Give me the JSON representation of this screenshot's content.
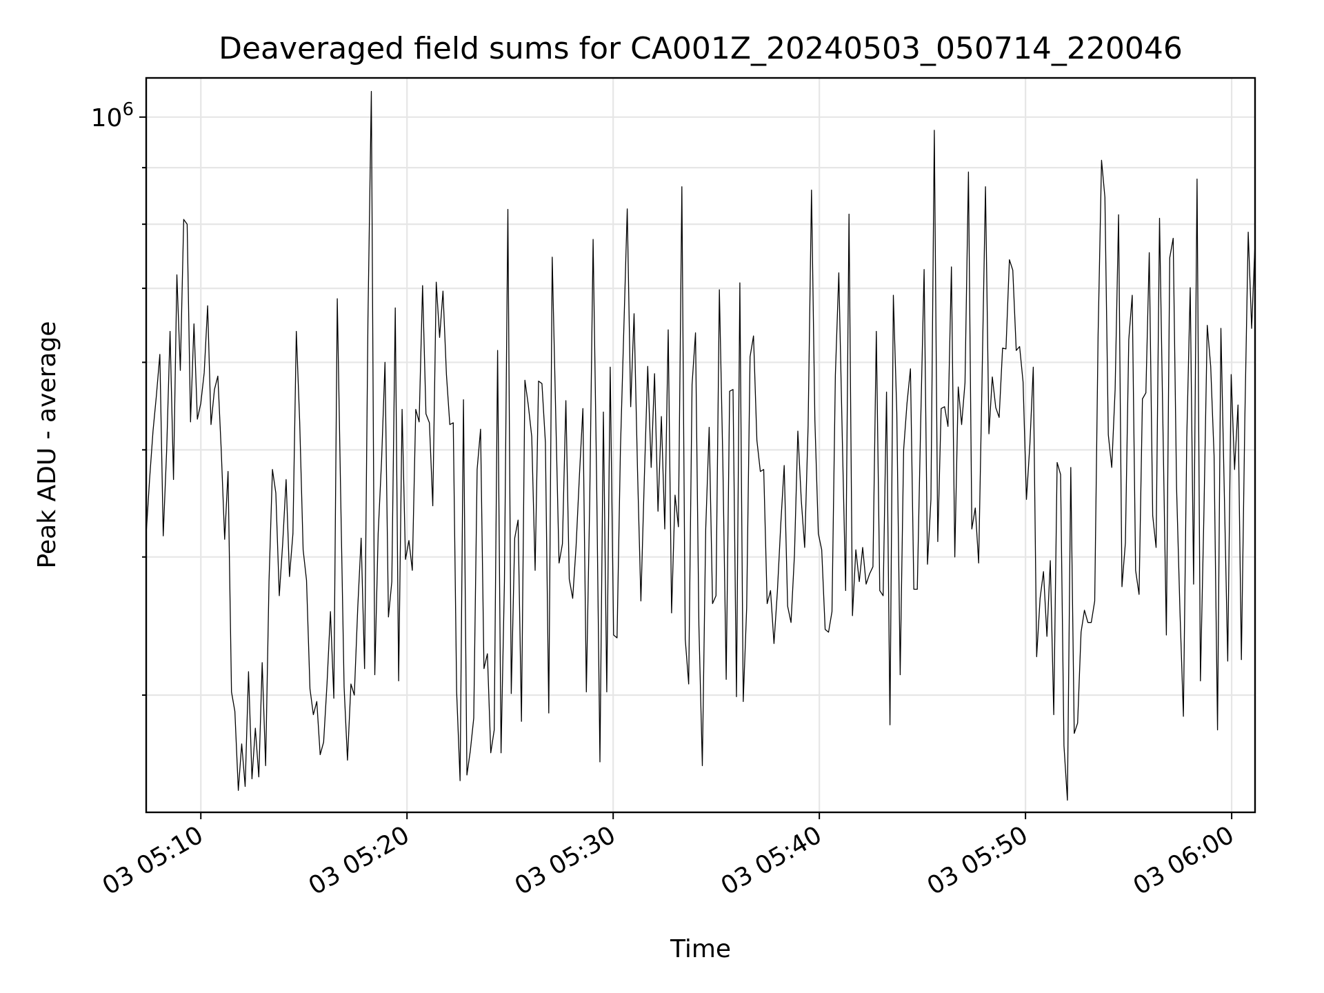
{
  "chart_data": {
    "type": "line",
    "title": "Deaveraged field sums for CA001Z_20240503_050714_220046",
    "xlabel": "Time",
    "ylabel": "Peak ADU - average",
    "yscale": "log",
    "grid": true,
    "legend": "none",
    "line_color": "#000000",
    "xlim": [
      "2024-05-03 05:07:21",
      "2024-05-03 06:01:08"
    ],
    "ylim": [
      235000,
      1085000
    ],
    "x_ticks": [
      {
        "value": "2024-05-03 05:10",
        "label": "03 05:10"
      },
      {
        "value": "2024-05-03 05:20",
        "label": "03 05:20"
      },
      {
        "value": "2024-05-03 05:30",
        "label": "03 05:30"
      },
      {
        "value": "2024-05-03 05:40",
        "label": "03 05:40"
      },
      {
        "value": "2024-05-03 05:50",
        "label": "03 05:50"
      },
      {
        "value": "2024-05-03 06:00",
        "label": "03 06:00"
      }
    ],
    "y_major_ticks": [
      {
        "value": 1000000,
        "base": "10",
        "exponent": "6"
      }
    ],
    "y_minor_ticks": [
      300000,
      400000,
      500000,
      600000,
      700000,
      800000,
      900000
    ],
    "series": [
      {
        "x_start": "2024-05-03 05:07:21",
        "x_end": "2024-05-03 06:01:08",
        "y": [
          420000,
          470000,
          520000,
          560000,
          610000,
          418000,
          500000,
          640000,
          470000,
          720000,
          590000,
          808000,
          800000,
          530000,
          650000,
          533000,
          551000,
          587000,
          675000,
          527000,
          567000,
          583000,
          500000,
          415000,
          478000,
          302000,
          290000,
          246000,
          271000,
          248000,
          315000,
          252000,
          280000,
          253000,
          321000,
          259000,
          380000,
          480000,
          457000,
          369000,
          411000,
          470000,
          384000,
          420000,
          640000,
          530000,
          406000,
          381000,
          304000,
          288000,
          296000,
          265000,
          272000,
          307000,
          357000,
          298000,
          685000,
          456000,
          305000,
          262000,
          307000,
          300000,
          360000,
          416000,
          317000,
          657000,
          1055000,
          313000,
          420000,
          490000,
          600000,
          353000,
          380000,
          672000,
          309000,
          544000,
          398000,
          414000,
          389000,
          544000,
          530000,
          704000,
          539000,
          529000,
          445000,
          709000,
          632000,
          696000,
          585000,
          527000,
          529000,
          302000,
          251000,
          555000,
          254000,
          267000,
          286000,
          480000,
          522000,
          317000,
          327000,
          266000,
          279000,
          615000,
          266000,
          380000,
          825000,
          301000,
          416000,
          432000,
          284000,
          578000,
          549000,
          514000,
          389000,
          577000,
          574000,
          508000,
          289000,
          747000,
          545000,
          395000,
          411000,
          554000,
          382000,
          367000,
          409000,
          476000,
          545000,
          302000,
          450000,
          775000,
          475000,
          261000,
          541000,
          302000,
          594000,
          340000,
          338000,
          500000,
          645000,
          826000,
          547000,
          664000,
          479000,
          365000,
          472000,
          595000,
          482000,
          586000,
          440000,
          536000,
          424000,
          642000,
          356000,
          455000,
          426000,
          865000,
          337000,
          307000,
          573000,
          638000,
          347000,
          259000,
          424000,
          524000,
          363000,
          369000,
          698000,
          489000,
          310000,
          565000,
          567000,
          299000,
          708000,
          296000,
          360000,
          607000,
          634000,
          510000,
          478000,
          480000,
          363000,
          373000,
          334000,
          372000,
          429000,
          484000,
          361000,
          349000,
          402000,
          520000,
          450000,
          408000,
          526000,
          859000,
          532000,
          420000,
          406000,
          344000,
          342000,
          357000,
          584000,
          723000,
          518000,
          373000,
          817000,
          354000,
          406000,
          380000,
          408000,
          378000,
          386000,
          392000,
          640000,
          373000,
          369000,
          564000,
          282000,
          690000,
          540000,
          313000,
          500000,
          551000,
          592000,
          374000,
          374000,
          528000,
          728000,
          394000,
          451000,
          973000,
          413000,
          545000,
          547000,
          525000,
          732000,
          400000,
          570000,
          527000,
          575000,
          892000,
          424000,
          443000,
          395000,
          583000,
          865000,
          517000,
          582000,
          546000,
          535000,
          618000,
          617000,
          743000,
          727000,
          615000,
          620000,
          576000,
          451000,
          506000,
          594000,
          325000,
          367000,
          388000,
          339000,
          397000,
          288000,
          487000,
          475000,
          270000,
          241000,
          482000,
          277000,
          283000,
          342000,
          358000,
          349000,
          349000,
          365000,
          635000,
          914000,
          846000,
          516000,
          482000,
          567000,
          816000,
          376000,
          412000,
          629000,
          690000,
          389000,
          370000,
          556000,
          563000,
          754000,
          436000,
          408000,
          810000,
          527000,
          340000,
          746000,
          777000,
          462000,
          356000,
          287000,
          513000,
          701000,
          378000,
          879000,
          309000,
          436000,
          648000,
          595000,
          494000,
          279000,
          644000,
          455000,
          322000,
          585000,
          480000,
          549000,
          323000,
          533000,
          787000,
          644000,
          770000
        ]
      }
    ]
  }
}
